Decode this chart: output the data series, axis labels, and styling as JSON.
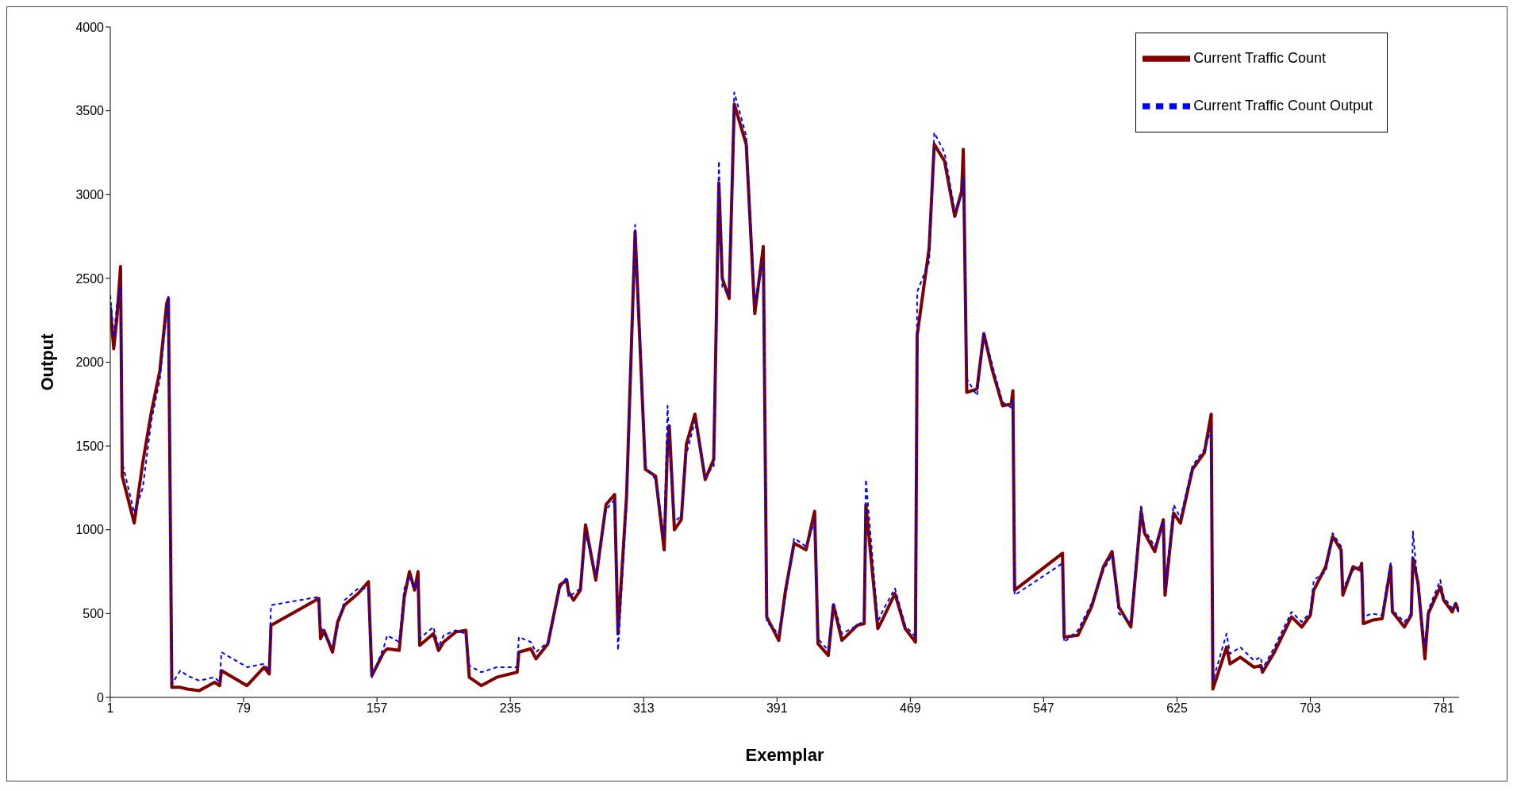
{
  "chart_data": {
    "type": "line",
    "xlabel": "Exemplar",
    "ylabel": "Output",
    "x": [
      1,
      3,
      5,
      7,
      8,
      15,
      20,
      25,
      30,
      34,
      35,
      37,
      42,
      46,
      53,
      62,
      65,
      66,
      81,
      91,
      94,
      95,
      123,
      124,
      126,
      131,
      134,
      138,
      146,
      152,
      154,
      161,
      163,
      170,
      173,
      176,
      179,
      181,
      182,
      190,
      193,
      196,
      203,
      209,
      211,
      218,
      227,
      239,
      240,
      247,
      250,
      257,
      264,
      268,
      269,
      272,
      276,
      279,
      285,
      291,
      296,
      298,
      303,
      308,
      314,
      320,
      325,
      327,
      328,
      331,
      335,
      338,
      343,
      349,
      354,
      357,
      359,
      363,
      366,
      373,
      378,
      383,
      385,
      392,
      396,
      401,
      408,
      413,
      415,
      421,
      424,
      429,
      438,
      442,
      443,
      450,
      453,
      460,
      466,
      472,
      473,
      480,
      483,
      489,
      495,
      499,
      500,
      502,
      508,
      512,
      517,
      523,
      528,
      529,
      530,
      558,
      559,
      567,
      575,
      582,
      587,
      591,
      598,
      604,
      606,
      612,
      617,
      618,
      623,
      627,
      634,
      641,
      645,
      646,
      654,
      656,
      662,
      670,
      674,
      675,
      682,
      692,
      698,
      703,
      705,
      712,
      716,
      721,
      722,
      728,
      732,
      733,
      734,
      739,
      745,
      750,
      751,
      758,
      762,
      763,
      766,
      770,
      772,
      779,
      781,
      786,
      788,
      790
    ],
    "series": [
      {
        "name": "Current Traffic Count",
        "color": "#800000",
        "line_style": "solid",
        "values": [
          2330,
          2080,
          2280,
          2570,
          1320,
          1040,
          1400,
          1700,
          1950,
          2350,
          2380,
          60,
          60,
          50,
          40,
          90,
          70,
          160,
          70,
          180,
          140,
          430,
          590,
          350,
          400,
          270,
          450,
          550,
          620,
          690,
          130,
          270,
          290,
          280,
          600,
          750,
          640,
          750,
          310,
          380,
          280,
          330,
          390,
          400,
          120,
          70,
          120,
          150,
          270,
          290,
          230,
          320,
          670,
          700,
          630,
          580,
          640,
          1030,
          700,
          1150,
          1210,
          380,
          1200,
          2780,
          1360,
          1320,
          880,
          1520,
          1620,
          1000,
          1060,
          1510,
          1690,
          1300,
          1420,
          3070,
          2500,
          2380,
          3540,
          3300,
          2290,
          2690,
          480,
          340,
          640,
          920,
          880,
          1110,
          320,
          250,
          550,
          340,
          430,
          440,
          1150,
          410,
          470,
          620,
          410,
          330,
          2160,
          2680,
          3300,
          3200,
          2870,
          3020,
          3270,
          1820,
          1840,
          2170,
          1950,
          1740,
          1750,
          1830,
          640,
          860,
          360,
          370,
          540,
          780,
          870,
          540,
          420,
          1110,
          980,
          870,
          1060,
          610,
          1100,
          1040,
          1360,
          1460,
          1690,
          50,
          300,
          200,
          240,
          180,
          190,
          150,
          270,
          480,
          420,
          490,
          640,
          780,
          960,
          880,
          610,
          780,
          760,
          800,
          440,
          460,
          470,
          780,
          510,
          420,
          490,
          830,
          680,
          230,
          500,
          660,
          580,
          510,
          560,
          510
        ]
      },
      {
        "name": "Current Traffic Count Output",
        "color": "#0000ff",
        "line_style": "dashed",
        "values": [
          2400,
          2150,
          2350,
          2450,
          1400,
          1100,
          1250,
          1650,
          1900,
          2300,
          2400,
          80,
          160,
          130,
          100,
          120,
          90,
          270,
          180,
          200,
          160,
          550,
          600,
          420,
          380,
          300,
          420,
          580,
          650,
          650,
          120,
          300,
          370,
          330,
          650,
          720,
          650,
          700,
          350,
          420,
          300,
          370,
          400,
          380,
          190,
          150,
          180,
          180,
          360,
          330,
          270,
          330,
          650,
          720,
          600,
          620,
          650,
          980,
          730,
          1120,
          1180,
          280,
          1150,
          2820,
          1380,
          1300,
          950,
          1740,
          1500,
          1050,
          1080,
          1450,
          1650,
          1320,
          1380,
          3200,
          2450,
          2400,
          3610,
          3350,
          2350,
          2600,
          450,
          380,
          600,
          950,
          900,
          1050,
          350,
          280,
          570,
          380,
          430,
          460,
          1300,
          450,
          520,
          650,
          430,
          360,
          2420,
          2600,
          3370,
          3250,
          2900,
          3000,
          3100,
          1900,
          1800,
          2180,
          1980,
          1760,
          1730,
          1770,
          610,
          800,
          330,
          400,
          560,
          760,
          850,
          500,
          450,
          1150,
          1000,
          900,
          1050,
          650,
          1150,
          1070,
          1380,
          1480,
          1600,
          100,
          380,
          260,
          300,
          220,
          240,
          170,
          300,
          510,
          450,
          510,
          700,
          750,
          980,
          900,
          650,
          760,
          780,
          770,
          480,
          500,
          490,
          810,
          520,
          450,
          500,
          990,
          650,
          300,
          520,
          700,
          600,
          530,
          560,
          500
        ]
      }
    ],
    "xlim": [
      1,
      790
    ],
    "xticks": [
      1,
      79,
      157,
      235,
      313,
      391,
      469,
      547,
      625,
      703,
      781
    ],
    "ylim": [
      0,
      4000
    ],
    "yticks": [
      0,
      500,
      1000,
      1500,
      2000,
      2500,
      3000,
      3500,
      4000
    ],
    "grid": false,
    "legend": "top right",
    "marker": "none"
  }
}
